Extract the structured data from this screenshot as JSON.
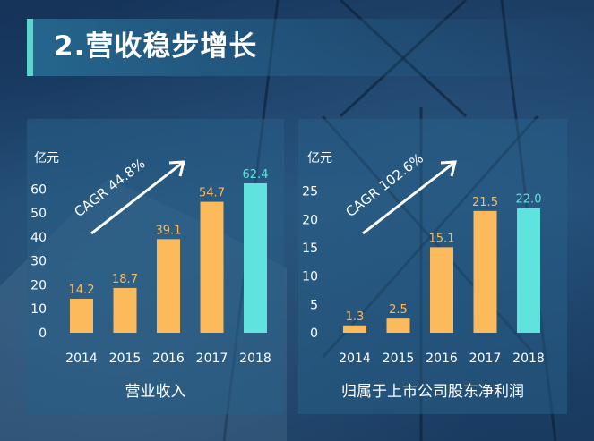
{
  "header": {
    "title": "2.营收稳步增长"
  },
  "colors": {
    "bar": "#fbbb5c",
    "highlight": "#5fe3dc",
    "label_orange": "#fbbb5c",
    "label_teal": "#5fe3dc",
    "text": "#ffffff"
  },
  "chart_data": [
    {
      "type": "bar",
      "title": "营业收入",
      "ylabel": "亿元",
      "categories": [
        "2014",
        "2015",
        "2016",
        "2017",
        "2018"
      ],
      "values": [
        14.2,
        18.7,
        39.1,
        54.7,
        62.4
      ],
      "value_labels": [
        "14.2",
        "18.7",
        "39.1",
        "54.7",
        "62.4"
      ],
      "highlight_index": 4,
      "yticks": [
        0,
        10,
        20,
        30,
        40,
        50,
        60
      ],
      "ylim": [
        0,
        65
      ],
      "annotation": "CAGR 44.8%",
      "grid": false
    },
    {
      "type": "bar",
      "title": "归属于上市公司股东净利润",
      "ylabel": "亿元",
      "categories": [
        "2014",
        "2015",
        "2016",
        "2017",
        "2018"
      ],
      "values": [
        1.3,
        2.5,
        15.1,
        21.5,
        22.0
      ],
      "value_labels": [
        "1.3",
        "2.5",
        "15.1",
        "21.5",
        "22.0"
      ],
      "highlight_index": 4,
      "yticks": [
        0,
        5,
        10,
        15,
        20,
        25
      ],
      "ylim": [
        0,
        27
      ],
      "annotation": "CAGR 102.6%",
      "grid": false
    }
  ]
}
